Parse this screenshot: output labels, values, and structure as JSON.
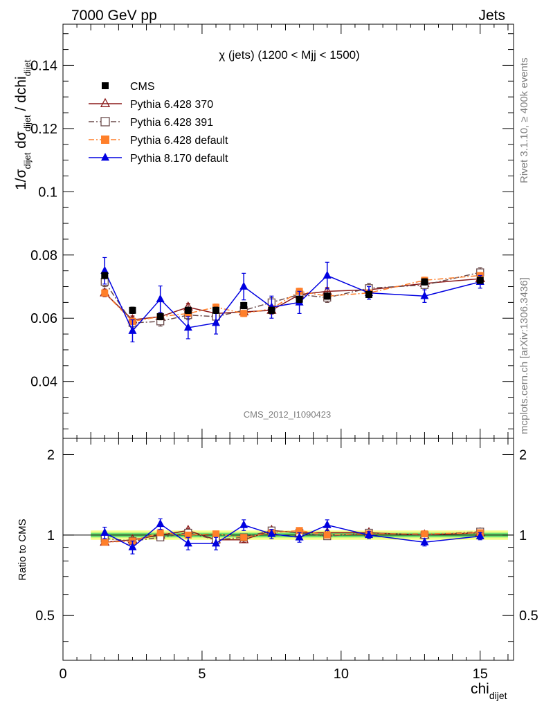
{
  "header": {
    "left": "7000 GeV pp",
    "right": "Jets"
  },
  "side": {
    "rivet": "Rivet 3.1.10, ≥ 400k events",
    "mcplots": "mcplots.cern.ch [arXiv:1306.3436]"
  },
  "chart_data": [
    {
      "type": "scatter",
      "title": "χ (jets) (1200 < Mjj < 1500)",
      "analysis_label": "CMS_2012_I1090423",
      "ylabel": "1/σ_dijet dσ_dijet / dchi_dijet",
      "ylabel_parts": {
        "a": "1/σ",
        "a_sub": "dijet",
        "b": " dσ",
        "b_sub": "dijet",
        "c": " / dchi",
        "c_sub": "dijet"
      },
      "xlabel": "chi_dijet",
      "xlabel_parts": {
        "main": "chi",
        "sub": "dijet"
      },
      "xlim": [
        0,
        16.2
      ],
      "ylim": [
        0.022,
        0.153
      ],
      "xticks": [
        0,
        5,
        10,
        15
      ],
      "xtick_labels": [
        "0",
        "5",
        "10",
        "15"
      ],
      "yticks": [
        0.04,
        0.06,
        0.08,
        0.1,
        0.12,
        0.14
      ],
      "ytick_labels": [
        "0.04",
        "0.06",
        "0.08",
        "0.1",
        "0.12",
        "0.14"
      ],
      "legend_position": "top-left",
      "series": [
        {
          "name": "CMS",
          "color": "#000000",
          "marker": "square",
          "line": "none",
          "x": [
            1.5,
            2.5,
            3.5,
            4.5,
            5.5,
            6.5,
            7.5,
            8.5,
            9.5,
            11,
            13,
            15
          ],
          "y": [
            0.0735,
            0.0625,
            0.0605,
            0.0625,
            0.0625,
            0.064,
            0.0625,
            0.066,
            0.067,
            0.0675,
            0.0715,
            0.072
          ],
          "err": [
            0.001,
            0.001,
            0.001,
            0.001,
            0.001,
            0.001,
            0.001,
            0.001,
            0.001,
            0.001,
            0.001,
            0.001
          ]
        },
        {
          "name": "Pythia 6.428 370",
          "color": "#8b1a1a",
          "marker": "triangle-open",
          "line": "solid",
          "x": [
            1.5,
            2.5,
            3.5,
            4.5,
            5.5,
            6.5,
            7.5,
            8.5,
            9.5,
            11,
            13,
            15
          ],
          "y": [
            0.068,
            0.0595,
            0.0605,
            0.0635,
            0.0615,
            0.062,
            0.0625,
            0.0675,
            0.0685,
            0.069,
            0.071,
            0.0725
          ],
          "err": [
            0.0012,
            0.0012,
            0.0012,
            0.0012,
            0.0012,
            0.0012,
            0.0012,
            0.0012,
            0.0012,
            0.0012,
            0.0012,
            0.0012
          ]
        },
        {
          "name": "Pythia 6.428 391",
          "color": "#6b4b4b",
          "marker": "square-open",
          "line": "dashdot",
          "x": [
            1.5,
            2.5,
            3.5,
            4.5,
            5.5,
            6.5,
            7.5,
            8.5,
            9.5,
            11,
            13,
            15
          ],
          "y": [
            0.0715,
            0.0585,
            0.059,
            0.061,
            0.0605,
            0.0625,
            0.065,
            0.0675,
            0.0665,
            0.0695,
            0.0705,
            0.0745
          ],
          "err": [
            0.0015,
            0.0015,
            0.0015,
            0.0015,
            0.0015,
            0.0015,
            0.0015,
            0.0015,
            0.0015,
            0.0015,
            0.0015,
            0.0015
          ]
        },
        {
          "name": "Pythia 6.428 default",
          "color": "#ff7f2a",
          "marker": "square",
          "line": "dashdot",
          "x": [
            1.5,
            2.5,
            3.5,
            4.5,
            5.5,
            6.5,
            7.5,
            8.5,
            9.5,
            11,
            13,
            15
          ],
          "y": [
            0.068,
            0.059,
            0.0605,
            0.0615,
            0.0635,
            0.0615,
            0.063,
            0.0685,
            0.067,
            0.068,
            0.072,
            0.0735
          ],
          "err": [
            0.001,
            0.001,
            0.001,
            0.001,
            0.001,
            0.001,
            0.001,
            0.001,
            0.001,
            0.001,
            0.001,
            0.001
          ]
        },
        {
          "name": "Pythia 8.170 default",
          "color": "#0000e0",
          "marker": "triangle",
          "line": "solid",
          "x": [
            1.5,
            2.5,
            3.5,
            4.5,
            5.5,
            6.5,
            7.5,
            8.5,
            9.5,
            11,
            13,
            15
          ],
          "y": [
            0.075,
            0.056,
            0.066,
            0.057,
            0.0585,
            0.07,
            0.0635,
            0.065,
            0.0735,
            0.068,
            0.067,
            0.0715
          ],
          "err": [
            0.0042,
            0.0035,
            0.0042,
            0.0035,
            0.0035,
            0.0042,
            0.0035,
            0.0035,
            0.0042,
            0.002,
            0.002,
            0.002
          ]
        }
      ]
    },
    {
      "type": "scatter",
      "ylabel": "Ratio to CMS",
      "xlim": [
        0,
        16.2
      ],
      "ylim": [
        0.34,
        2.3
      ],
      "log_y": true,
      "yticks": [
        0.5,
        1,
        2
      ],
      "ytick_labels": [
        "0.5",
        "1",
        "2"
      ],
      "band_x": [
        1,
        16
      ],
      "band_inner": [
        0.98,
        1.02
      ],
      "band_outer": [
        0.96,
        1.04
      ],
      "band_colors": {
        "inner": "#6fe06f",
        "outer": "#f5ff8a"
      },
      "series": [
        {
          "name": "Pythia 6.428 370",
          "color": "#8b1a1a",
          "marker": "triangle-open",
          "line": "solid",
          "x": [
            1.5,
            2.5,
            3.5,
            4.5,
            5.5,
            6.5,
            7.5,
            8.5,
            9.5,
            11,
            13,
            15
          ],
          "y": [
            0.94,
            0.96,
            1.0,
            1.04,
            0.96,
            0.96,
            1.04,
            1.02,
            1.02,
            1.02,
            1.0,
            1.02
          ],
          "err": 0.02
        },
        {
          "name": "Pythia 6.428 391",
          "color": "#6b4b4b",
          "marker": "square-open",
          "line": "dashdot",
          "x": [
            1.5,
            2.5,
            3.5,
            4.5,
            5.5,
            6.5,
            7.5,
            8.5,
            9.5,
            11,
            13,
            15
          ],
          "y": [
            0.97,
            0.95,
            0.98,
            1.02,
            0.96,
            0.98,
            1.04,
            1.02,
            0.99,
            1.02,
            1.0,
            1.03
          ],
          "err": 0.02
        },
        {
          "name": "Pythia 6.428 default",
          "color": "#ff7f2a",
          "marker": "square",
          "line": "dashdot",
          "x": [
            1.5,
            2.5,
            3.5,
            4.5,
            5.5,
            6.5,
            7.5,
            8.5,
            9.5,
            11,
            13,
            15
          ],
          "y": [
            0.94,
            0.95,
            1.02,
            1.0,
            1.01,
            0.98,
            1.02,
            1.04,
            1.0,
            1.01,
            1.01,
            1.02
          ],
          "err": 0.02
        },
        {
          "name": "Pythia 8.170 default",
          "color": "#0000e0",
          "marker": "triangle",
          "line": "solid",
          "x": [
            1.5,
            2.5,
            3.5,
            4.5,
            5.5,
            6.5,
            7.5,
            8.5,
            9.5,
            11,
            13,
            15
          ],
          "y": [
            1.02,
            0.9,
            1.1,
            0.93,
            0.93,
            1.09,
            1.01,
            0.98,
            1.09,
            1.0,
            0.94,
            0.99
          ],
          "err": [
            0.05,
            0.05,
            0.05,
            0.05,
            0.05,
            0.05,
            0.04,
            0.04,
            0.05,
            0.03,
            0.03,
            0.03
          ]
        }
      ]
    }
  ]
}
